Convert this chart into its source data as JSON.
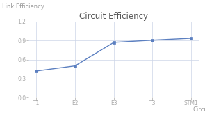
{
  "title": "Circuit Efficiency",
  "xlabel": "Circuit",
  "ylabel": "Link Efficiency",
  "categories": [
    "T1",
    "E2",
    "E3",
    "T3",
    "STM1"
  ],
  "values": [
    0.42,
    0.5,
    0.87,
    0.905,
    0.935
  ],
  "ylim": [
    0,
    1.2
  ],
  "yticks": [
    0,
    0.3,
    0.6,
    0.9,
    1.2
  ],
  "line_color": "#5b7fc0",
  "marker": "s",
  "marker_size": 2.5,
  "line_width": 1.0,
  "title_fontsize": 8.5,
  "label_fontsize": 6.0,
  "tick_fontsize": 5.5,
  "grid_color": "#ccd5e8",
  "bg_color": "#ffffff"
}
